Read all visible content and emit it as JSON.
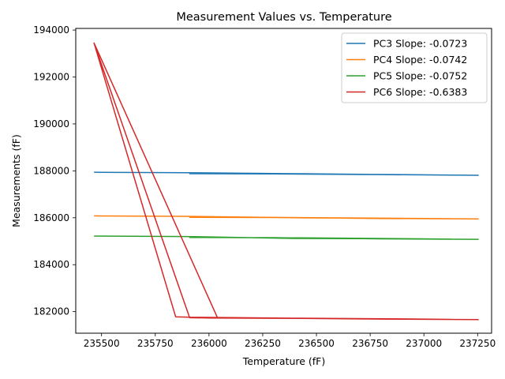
{
  "chart_data": {
    "type": "line",
    "title": "Measurement Values vs. Temperature",
    "xlabel": "Temperature (fF)",
    "ylabel": "Measurements (fF)",
    "xlim": [
      235380,
      237315
    ],
    "ylim": [
      181080,
      194070
    ],
    "x_ticks": [
      235500,
      235750,
      236000,
      236250,
      236500,
      236750,
      237000,
      237250
    ],
    "y_ticks": [
      182000,
      184000,
      186000,
      188000,
      190000,
      192000,
      194000
    ],
    "legend_position": "top-right",
    "grid": false,
    "series": [
      {
        "name": "PC3 Slope: -0.0723",
        "color": "#1f77b4",
        "points": [
          [
            235465,
            187940
          ],
          [
            235900,
            187920
          ],
          [
            236400,
            187880
          ],
          [
            236750,
            187850
          ],
          [
            237130,
            187820
          ],
          [
            236500,
            187860
          ],
          [
            236000,
            187900
          ],
          [
            235910,
            187880
          ],
          [
            236300,
            187870
          ],
          [
            236800,
            187840
          ],
          [
            237255,
            187810
          ]
        ]
      },
      {
        "name": "PC4 Slope: -0.0742",
        "color": "#ff7f0e",
        "points": [
          [
            235465,
            186080
          ],
          [
            235900,
            186060
          ],
          [
            236400,
            186000
          ],
          [
            236750,
            185980
          ],
          [
            237130,
            185960
          ],
          [
            236500,
            186000
          ],
          [
            236000,
            186040
          ],
          [
            235910,
            186020
          ],
          [
            236300,
            186010
          ],
          [
            236800,
            185970
          ],
          [
            237255,
            185950
          ]
        ]
      },
      {
        "name": "PC5 Slope: -0.0752",
        "color": "#2ca02c",
        "points": [
          [
            235465,
            185220
          ],
          [
            235900,
            185200
          ],
          [
            236400,
            185120
          ],
          [
            236750,
            185110
          ],
          [
            237130,
            185090
          ],
          [
            236500,
            185140
          ],
          [
            236000,
            185160
          ],
          [
            235910,
            185160
          ],
          [
            236300,
            185150
          ],
          [
            236800,
            185100
          ],
          [
            237255,
            185080
          ]
        ]
      },
      {
        "name": "PC6 Slope: -0.6383",
        "color": "#d62728",
        "points": [
          [
            235465,
            193450
          ],
          [
            235845,
            181780
          ],
          [
            235910,
            181760
          ],
          [
            236400,
            181720
          ],
          [
            236750,
            181700
          ],
          [
            237130,
            181670
          ],
          [
            236500,
            181710
          ],
          [
            236000,
            181730
          ],
          [
            235910,
            181740
          ],
          [
            235465,
            193450
          ],
          [
            236040,
            181730
          ],
          [
            236300,
            181720
          ],
          [
            236800,
            181680
          ],
          [
            237255,
            181660
          ]
        ]
      }
    ]
  }
}
